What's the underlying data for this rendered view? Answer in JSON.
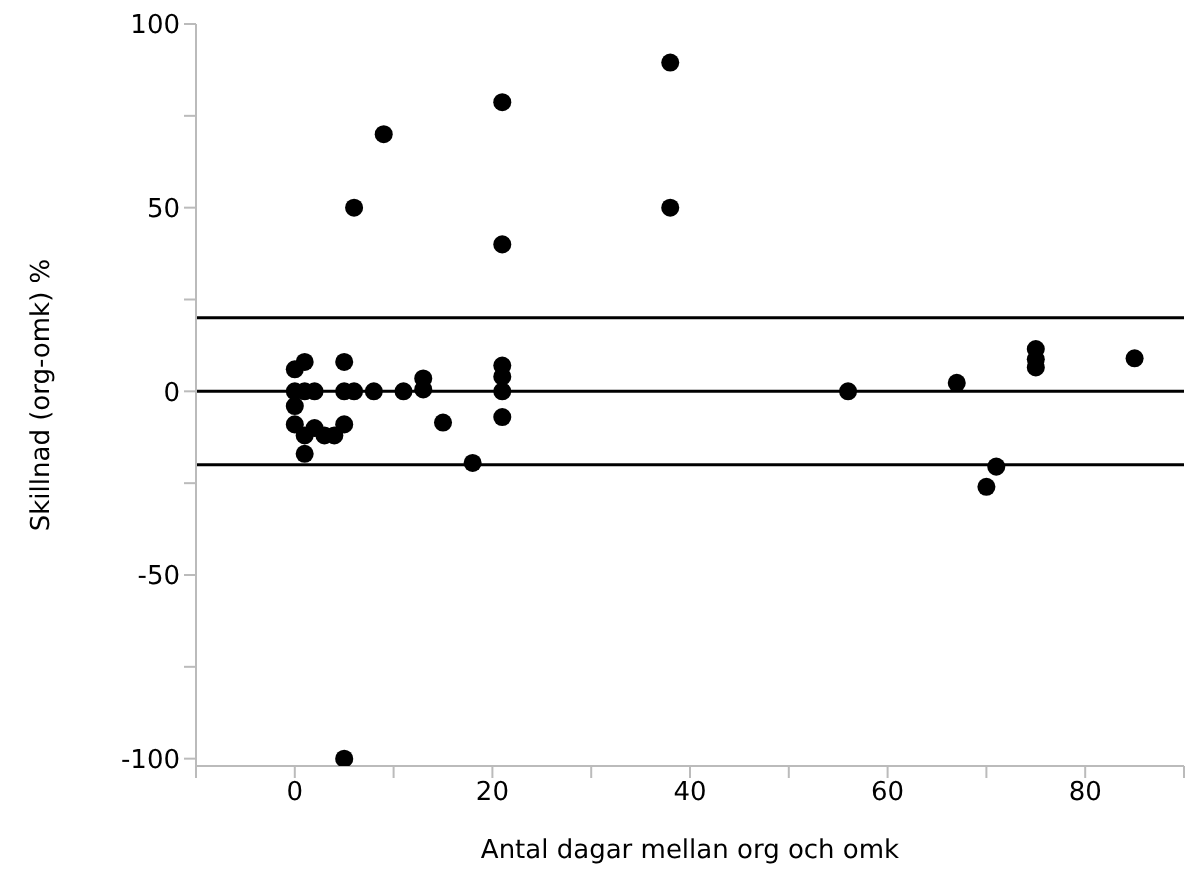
{
  "chart_data": {
    "type": "scatter",
    "xlabel": "Antal dagar mellan org och omk",
    "ylabel": "Skillnad (org-omk) %",
    "x": [
      0,
      1,
      0,
      1,
      2,
      0,
      0,
      1,
      1,
      2,
      3,
      4,
      5,
      5,
      5,
      6,
      8,
      11,
      13,
      13,
      15,
      18,
      21,
      21,
      21,
      21,
      6,
      9,
      21,
      21,
      38,
      38,
      5,
      56,
      67,
      75,
      75,
      75,
      85,
      71,
      70
    ],
    "series": [
      {
        "color": "#000000",
        "values": [
          6,
          8,
          0,
          0,
          0,
          -4,
          -9,
          -12,
          -17,
          -10,
          -12,
          -12,
          -9,
          8,
          0,
          0,
          0,
          0,
          3.5,
          0.5,
          -8.5,
          -19.5,
          7,
          4,
          0,
          -7,
          50,
          70,
          78.7,
          40,
          89.5,
          50,
          -100,
          0,
          2.3,
          11.5,
          8.7,
          6.5,
          9,
          -20.5,
          -26
        ]
      }
    ],
    "xlim": [
      -10,
      90
    ],
    "xticks": [
      {
        "value": -10,
        "label": null
      },
      0,
      {
        "value": 10,
        "label": null
      },
      20,
      {
        "value": 30,
        "label": null
      },
      40,
      {
        "value": 50,
        "label": null
      },
      60,
      {
        "value": 70,
        "label": null
      },
      80,
      {
        "value": 90,
        "label": null
      }
    ],
    "ylim": [
      -102,
      100
    ],
    "yticks": [
      -100,
      {
        "value": -75,
        "label": null
      },
      -50,
      {
        "value": -25,
        "label": null
      },
      0,
      {
        "value": 25,
        "label": null
      },
      50,
      {
        "value": 75,
        "label": null
      },
      100
    ],
    "ref_lines": [
      {
        "axis": "y",
        "value": 20,
        "color": "#000000"
      },
      {
        "axis": "y",
        "value": 0,
        "color": "#000000"
      },
      {
        "axis": "y",
        "value": -20,
        "color": "#000000"
      }
    ],
    "marker": "circle",
    "grid": false,
    "legend": false
  }
}
